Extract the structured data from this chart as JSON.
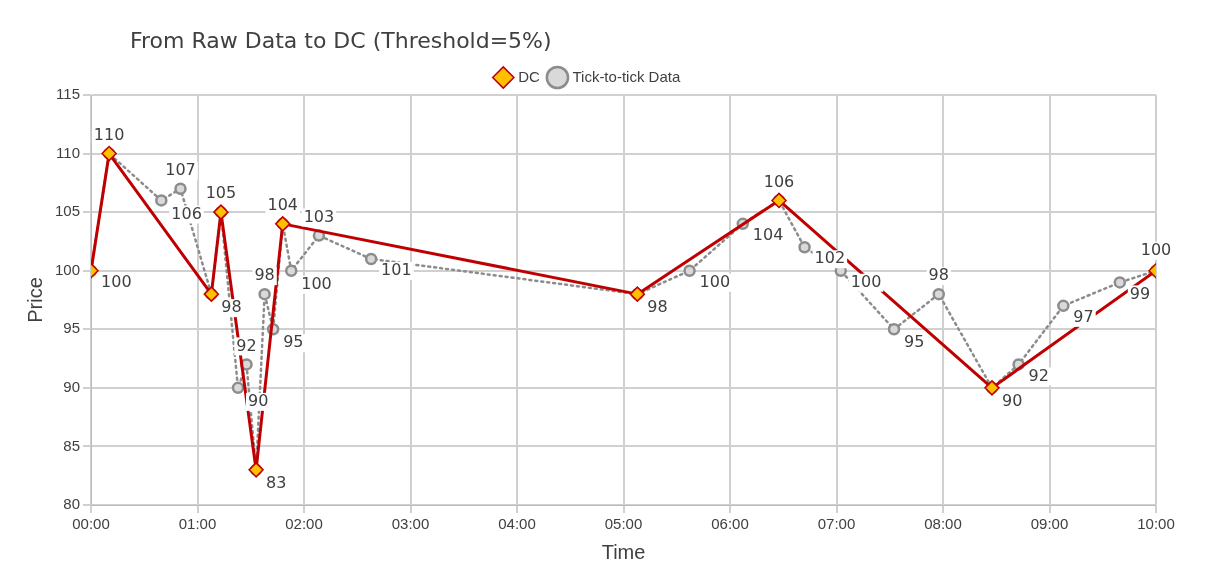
{
  "chart_data": {
    "type": "line",
    "title": "From Raw Data to DC (Threshold=5%)",
    "xlabel": "Time",
    "ylabel": "Price",
    "xlim": [
      0,
      10
    ],
    "xticks": [
      {
        "value": 0,
        "label": "00:00"
      },
      {
        "value": 1,
        "label": "01:00"
      },
      {
        "value": 2,
        "label": "02:00"
      },
      {
        "value": 3,
        "label": "03:00"
      },
      {
        "value": 4,
        "label": "04:00"
      },
      {
        "value": 5,
        "label": "05:00"
      },
      {
        "value": 6,
        "label": "06:00"
      },
      {
        "value": 7,
        "label": "07:00"
      },
      {
        "value": 8,
        "label": "08:00"
      },
      {
        "value": 9,
        "label": "09:00"
      },
      {
        "value": 10,
        "label": "10:00"
      }
    ],
    "ylim": [
      80,
      115
    ],
    "yticks": [
      80,
      85,
      90,
      95,
      100,
      105,
      110,
      115
    ],
    "grid": true,
    "legend": "top",
    "series": [
      {
        "name": "Tick-to-tick Data",
        "color": "#8c8c8c",
        "marker": "circle",
        "line_style": "dotted",
        "x": [
          0,
          0.17,
          0.66,
          0.84,
          1.13,
          1.22,
          1.38,
          1.46,
          1.55,
          1.63,
          1.71,
          1.8,
          1.88,
          2.14,
          2.63,
          5.13,
          5.62,
          6.12,
          6.46,
          6.7,
          7.04,
          7.54,
          7.96,
          8.46,
          8.71,
          9.13,
          9.66,
          10
        ],
        "values": [
          100,
          110,
          106,
          107,
          98,
          105,
          90,
          92,
          83,
          98,
          95,
          104,
          100,
          103,
          101,
          98,
          100,
          104,
          106,
          102,
          100,
          95,
          98,
          90,
          92,
          97,
          99,
          100
        ],
        "value_labels": [
          "100",
          "110",
          "106",
          "107",
          "98",
          "105",
          "90",
          "92",
          "83",
          "98",
          "95",
          "104",
          "100",
          "103",
          "101",
          "98",
          "100",
          "104",
          "106",
          "102",
          "100",
          "95",
          "98",
          "90",
          "92",
          "97",
          "99",
          "100"
        ]
      },
      {
        "name": "DC",
        "color": "#c00000",
        "marker": "diamond",
        "line_style": "solid",
        "x": [
          0,
          0.17,
          1.13,
          1.22,
          1.55,
          1.8,
          5.13,
          6.46,
          8.46,
          10
        ],
        "values": [
          100,
          110,
          98,
          105,
          83,
          104,
          98,
          106,
          90,
          100
        ]
      }
    ]
  }
}
